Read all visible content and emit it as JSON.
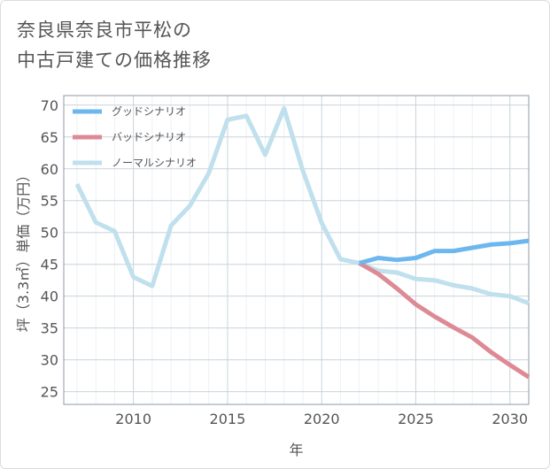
{
  "title_line1": "奈良県奈良市平松の",
  "title_line2": "中古戸建ての価格推移",
  "chart_data": {
    "type": "line",
    "title": "奈良県奈良市平松の中古戸建ての価格推移",
    "xlabel": "年",
    "ylabel": "坪（3.3㎡）単価（万円）",
    "xlim": [
      2006.3,
      2031
    ],
    "ylim": [
      23,
      71.5
    ],
    "xticks": [
      2010,
      2015,
      2020,
      2025,
      2030
    ],
    "yticks": [
      25,
      30,
      35,
      40,
      45,
      50,
      55,
      60,
      65,
      70
    ],
    "grid": true,
    "legend_position": "top-left",
    "series": [
      {
        "name": "グッドシナリオ",
        "color": "#6cb8ee",
        "x": [
          2022,
          2023,
          2024,
          2025,
          2026,
          2027,
          2028,
          2029,
          2030,
          2031
        ],
        "y": [
          45.2,
          46.0,
          45.7,
          46.0,
          47.1,
          47.1,
          47.6,
          48.1,
          48.3,
          48.7
        ]
      },
      {
        "name": "バッドシナリオ",
        "color": "#dd8a95",
        "x": [
          2022,
          2023,
          2024,
          2025,
          2026,
          2027,
          2028,
          2029,
          2030,
          2031
        ],
        "y": [
          45.2,
          43.5,
          41.2,
          38.7,
          36.8,
          35.1,
          33.5,
          31.2,
          29.2,
          27.3
        ]
      },
      {
        "name": "ノーマルシナリオ",
        "color": "#bfe0ec",
        "x": [
          2007,
          2008,
          2009,
          2010,
          2011,
          2012,
          2013,
          2014,
          2015,
          2016,
          2017,
          2018,
          2019,
          2020,
          2021,
          2022,
          2023,
          2024,
          2025,
          2026,
          2027,
          2028,
          2029,
          2030,
          2031
        ],
        "y": [
          57.6,
          51.6,
          50.2,
          43.0,
          41.6,
          51.1,
          54.2,
          59.3,
          67.7,
          68.3,
          62.2,
          69.5,
          59.7,
          51.5,
          45.8,
          45.2,
          44.0,
          43.7,
          42.7,
          42.5,
          41.7,
          41.2,
          40.3,
          40.0,
          38.9
        ]
      }
    ]
  }
}
